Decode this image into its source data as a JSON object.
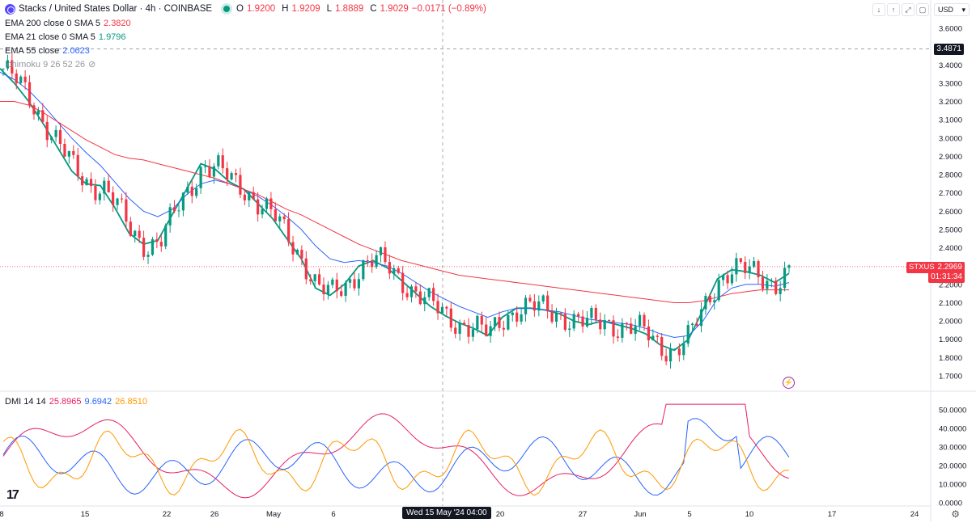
{
  "header": {
    "symbol": "Stacks / United States Dollar · 4h · COINBASE",
    "ohlc": {
      "o_label": "O",
      "o": "1.9200",
      "h_label": "H",
      "h": "1.9209",
      "l_label": "L",
      "l": "1.8889",
      "c_label": "C",
      "c": "1.9029",
      "change": "−0.0171 (−0.89%)"
    }
  },
  "indicators": [
    {
      "label": "EMA 200 close 0 SMA 5",
      "value": "2.3820",
      "color": "#f23645"
    },
    {
      "label": "EMA 21 close 0 SMA 5",
      "value": "1.9796",
      "color": "#089981"
    },
    {
      "label": "EMA 55 close",
      "value": "2.0623",
      "color": "#2962ff"
    },
    {
      "label": "Ichimoku 9 26 52 26",
      "value": "",
      "color": "#9598a1"
    }
  ],
  "dmi": {
    "label": "DMI 14 14",
    "v1": "25.8965",
    "v2": "9.6942",
    "v3": "26.8510"
  },
  "toolbar": {
    "currency": "USD"
  },
  "price_tags": {
    "crosshair": "3.4871",
    "last": "2.2969",
    "countdown": "01:31:34",
    "symbol": "STXUSD"
  },
  "crosshair_time": "Wed 15 May '24  04:00",
  "colors": {
    "up": "#089981",
    "down": "#f23645",
    "ema200": "#f23645",
    "ema21": "#089981",
    "ema55": "#2962ff",
    "pdi": "#2962ff",
    "mdi": "#ff9800",
    "adx": "#e91e63"
  },
  "chart_data": {
    "type": "line",
    "title": "Stacks / United States Dollar · 4h · COINBASE",
    "x_ticks": [
      "8",
      "15",
      "22",
      "26",
      "May",
      "6",
      "20",
      "27",
      "Jun",
      "5",
      "10",
      "17",
      "24"
    ],
    "price_axis": {
      "ylim": [
        1.7,
        3.6
      ],
      "ticks": [
        "3.6000",
        "3.5000",
        "3.4000",
        "3.3000",
        "3.2000",
        "3.1000",
        "3.0000",
        "2.9000",
        "2.8000",
        "2.7000",
        "2.6000",
        "2.5000",
        "2.4000",
        "2.3000",
        "2.2000",
        "2.1000",
        "2.0000",
        "1.9000",
        "1.8000",
        "1.7000"
      ]
    },
    "dmi_axis": {
      "ylim": [
        0,
        55
      ],
      "ticks": [
        "50.0000",
        "40.0000",
        "30.0000",
        "20.0000",
        "10.0000",
        "0.0000"
      ]
    },
    "series": [
      {
        "name": "EMA 21",
        "values": [
          3.38,
          3.3,
          3.2,
          3.08,
          2.95,
          2.82,
          2.75,
          2.74,
          2.62,
          2.48,
          2.42,
          2.44,
          2.58,
          2.72,
          2.86,
          2.83,
          2.76,
          2.72,
          2.64,
          2.56,
          2.45,
          2.34,
          2.18,
          2.14,
          2.2,
          2.3,
          2.33,
          2.29,
          2.22,
          2.15,
          2.08,
          2.03,
          1.99,
          1.96,
          1.92,
          2.02,
          2.07,
          2.07,
          2.06,
          2.04,
          2.0,
          1.98,
          2.0,
          1.98,
          1.96,
          1.93,
          1.87,
          1.84,
          1.9,
          2.06,
          2.23,
          2.28,
          2.27,
          2.25,
          2.21,
          2.26
        ]
      },
      {
        "name": "EMA 55",
        "values": [
          3.36,
          3.32,
          3.26,
          3.18,
          3.09,
          3.0,
          2.92,
          2.85,
          2.76,
          2.67,
          2.6,
          2.57,
          2.61,
          2.69,
          2.75,
          2.77,
          2.75,
          2.72,
          2.68,
          2.63,
          2.57,
          2.5,
          2.41,
          2.34,
          2.32,
          2.33,
          2.32,
          2.3,
          2.26,
          2.21,
          2.16,
          2.12,
          2.08,
          2.05,
          2.02,
          2.05,
          2.07,
          2.07,
          2.06,
          2.05,
          2.03,
          2.01,
          2.0,
          1.99,
          1.98,
          1.96,
          1.93,
          1.91,
          1.92,
          2.0,
          2.12,
          2.18,
          2.2,
          2.2,
          2.19,
          2.21
        ]
      },
      {
        "name": "EMA 200",
        "values": [
          3.2,
          3.2,
          3.18,
          3.14,
          3.09,
          3.04,
          2.99,
          2.95,
          2.91,
          2.89,
          2.88,
          2.86,
          2.84,
          2.82,
          2.8,
          2.78,
          2.75,
          2.72,
          2.69,
          2.65,
          2.61,
          2.58,
          2.54,
          2.5,
          2.46,
          2.42,
          2.39,
          2.36,
          2.33,
          2.31,
          2.29,
          2.27,
          2.25,
          2.24,
          2.23,
          2.22,
          2.21,
          2.2,
          2.19,
          2.18,
          2.17,
          2.16,
          2.15,
          2.14,
          2.13,
          2.12,
          2.11,
          2.1,
          2.1,
          2.11,
          2.13,
          2.15,
          2.16,
          2.17,
          2.17,
          2.17
        ]
      }
    ]
  }
}
